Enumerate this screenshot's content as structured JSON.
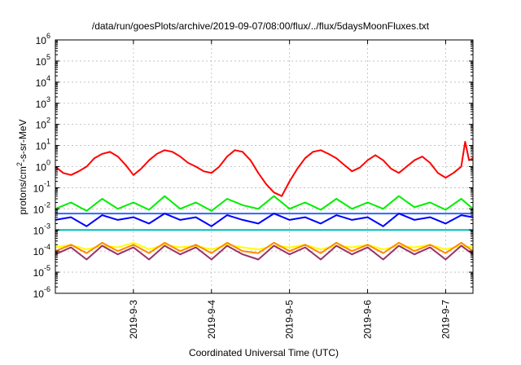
{
  "chart_data": {
    "type": "line",
    "title": "/data/run/goesPlots/archive/2019-09-07/08:00/flux/../flux/5daysMoonFluxes.txt",
    "xlabel": "Coordinated Universal Time (UTC)",
    "ylabel_parts": {
      "base": "protons/cm",
      "sup": "2",
      "rest": "-s-sr-MeV"
    },
    "yscale": "log",
    "ylim_exp": [
      -6,
      6
    ],
    "y_tick_labels": [
      {
        "base": "10",
        "exp": "6"
      },
      {
        "base": "10",
        "exp": "5"
      },
      {
        "base": "10",
        "exp": "4"
      },
      {
        "base": "10",
        "exp": "3"
      },
      {
        "base": "10",
        "exp": "2"
      },
      {
        "base": "10",
        "exp": "1"
      },
      {
        "base": "10",
        "exp": "0"
      },
      {
        "base": "10",
        "exp": "-1"
      },
      {
        "base": "10",
        "exp": "-2"
      },
      {
        "base": "10",
        "exp": "-3"
      },
      {
        "base": "10",
        "exp": "-4"
      },
      {
        "base": "10",
        "exp": "-5"
      },
      {
        "base": "10",
        "exp": "-6"
      }
    ],
    "x_tick_labels": [
      "2019-9-3",
      "2019-9-4",
      "2019-9-5",
      "2019-9-6",
      "2019-9-7"
    ],
    "xlim_days": [
      2.0,
      7.35
    ],
    "grid": true,
    "series": [
      {
        "color": "#ff0000",
        "x": [
          2.0,
          2.1,
          2.2,
          2.3,
          2.4,
          2.5,
          2.6,
          2.7,
          2.8,
          2.9,
          3.0,
          3.1,
          3.2,
          3.3,
          3.4,
          3.5,
          3.6,
          3.7,
          3.8,
          3.9,
          4.0,
          4.1,
          4.2,
          4.3,
          4.4,
          4.5,
          4.6,
          4.7,
          4.8,
          4.9,
          5.0,
          5.1,
          5.2,
          5.3,
          5.4,
          5.5,
          5.6,
          5.7,
          5.8,
          5.9,
          6.0,
          6.1,
          6.2,
          6.3,
          6.4,
          6.5,
          6.6,
          6.7,
          6.8,
          6.9,
          7.0,
          7.1,
          7.2,
          7.25,
          7.3,
          7.35
        ],
        "values": [
          1.0,
          0.5,
          0.4,
          0.6,
          1.0,
          2.5,
          4.0,
          5.0,
          3.0,
          1.2,
          0.4,
          0.8,
          2.0,
          4.0,
          6.0,
          5.0,
          3.0,
          1.5,
          1.0,
          0.6,
          0.5,
          1.0,
          3.0,
          6.0,
          5.0,
          2.0,
          0.5,
          0.15,
          0.06,
          0.04,
          0.2,
          0.8,
          2.5,
          5.0,
          6.0,
          4.0,
          2.5,
          1.2,
          0.6,
          0.9,
          2.0,
          3.5,
          2.0,
          0.8,
          0.5,
          1.0,
          2.0,
          3.0,
          1.5,
          0.5,
          0.3,
          0.5,
          1.0,
          15.0,
          2.0,
          2.5
        ]
      },
      {
        "color": "#00ee00",
        "x": [
          2.0,
          2.2,
          2.4,
          2.6,
          2.8,
          3.0,
          3.2,
          3.4,
          3.6,
          3.8,
          4.0,
          4.2,
          4.4,
          4.6,
          4.8,
          5.0,
          5.2,
          5.4,
          5.6,
          5.8,
          6.0,
          6.2,
          6.4,
          6.6,
          6.8,
          7.0,
          7.2,
          7.35
        ],
        "values": [
          0.01,
          0.02,
          0.008,
          0.03,
          0.01,
          0.02,
          0.009,
          0.04,
          0.01,
          0.02,
          0.008,
          0.03,
          0.015,
          0.01,
          0.04,
          0.01,
          0.02,
          0.009,
          0.03,
          0.01,
          0.02,
          0.01,
          0.04,
          0.012,
          0.02,
          0.009,
          0.03,
          0.01
        ]
      },
      {
        "color": "#3366ff",
        "x": [
          2.0,
          7.35
        ],
        "values": [
          0.006,
          0.006
        ]
      },
      {
        "color": "#0000ff",
        "x": [
          2.0,
          2.2,
          2.4,
          2.6,
          2.8,
          3.0,
          3.2,
          3.4,
          3.6,
          3.8,
          4.0,
          4.2,
          4.4,
          4.6,
          4.8,
          5.0,
          5.2,
          5.4,
          5.6,
          5.8,
          6.0,
          6.2,
          6.4,
          6.6,
          6.8,
          7.0,
          7.2,
          7.35
        ],
        "values": [
          0.003,
          0.004,
          0.0015,
          0.005,
          0.003,
          0.004,
          0.002,
          0.006,
          0.003,
          0.004,
          0.0015,
          0.005,
          0.003,
          0.002,
          0.006,
          0.003,
          0.004,
          0.002,
          0.005,
          0.003,
          0.004,
          0.0015,
          0.006,
          0.003,
          0.004,
          0.002,
          0.005,
          0.004
        ]
      },
      {
        "color": "#00bbbb",
        "x": [
          2.0,
          7.35
        ],
        "values": [
          0.001,
          0.001
        ]
      },
      {
        "color": "#ffff00",
        "x": [
          2.0,
          2.2,
          2.4,
          2.6,
          2.8,
          3.0,
          3.2,
          3.4,
          3.6,
          3.8,
          4.0,
          4.2,
          4.4,
          4.6,
          4.8,
          5.0,
          5.2,
          5.4,
          5.6,
          5.8,
          6.0,
          6.2,
          6.4,
          6.6,
          6.8,
          7.0,
          7.2,
          7.35
        ],
        "values": [
          0.00015,
          0.0002,
          0.00012,
          0.00018,
          0.00015,
          0.00025,
          0.00012,
          0.0002,
          0.00015,
          0.00018,
          0.00012,
          0.0002,
          0.00015,
          0.00012,
          0.00018,
          0.00015,
          0.0002,
          0.00012,
          0.00018,
          0.00015,
          0.0002,
          0.00012,
          0.00018,
          0.00015,
          0.0002,
          0.00012,
          0.00018,
          0.00015
        ]
      },
      {
        "color": "#ff8800",
        "x": [
          2.0,
          2.2,
          2.4,
          2.6,
          2.8,
          3.0,
          3.2,
          3.4,
          3.6,
          3.8,
          4.0,
          4.2,
          4.4,
          4.6,
          4.8,
          5.0,
          5.2,
          5.4,
          5.6,
          5.8,
          6.0,
          6.2,
          6.4,
          6.6,
          6.8,
          7.0,
          7.2,
          7.35
        ],
        "values": [
          0.0001,
          0.0002,
          8e-05,
          0.00025,
          0.0001,
          0.0002,
          8e-05,
          0.00025,
          0.0001,
          0.0002,
          8e-05,
          0.00025,
          0.0001,
          8e-05,
          0.00025,
          0.0001,
          0.0002,
          8e-05,
          0.00025,
          0.0001,
          0.0002,
          8e-05,
          0.00025,
          0.0001,
          0.0002,
          8e-05,
          0.00025,
          0.0001
        ]
      },
      {
        "color": "#993366",
        "x": [
          2.0,
          2.2,
          2.4,
          2.6,
          2.8,
          3.0,
          3.2,
          3.4,
          3.6,
          3.8,
          4.0,
          4.2,
          4.4,
          4.6,
          4.8,
          5.0,
          5.2,
          5.4,
          5.6,
          5.8,
          6.0,
          6.2,
          6.4,
          6.6,
          6.8,
          7.0,
          7.2,
          7.35
        ],
        "values": [
          7e-05,
          0.00015,
          4e-05,
          0.00018,
          7e-05,
          0.00015,
          4e-05,
          0.00018,
          7e-05,
          0.00015,
          4e-05,
          0.00018,
          7e-05,
          4e-05,
          0.00018,
          7e-05,
          0.00015,
          4e-05,
          0.00018,
          7e-05,
          0.00015,
          4e-05,
          0.00018,
          7e-05,
          0.00015,
          4e-05,
          0.00018,
          7e-05
        ]
      }
    ]
  }
}
